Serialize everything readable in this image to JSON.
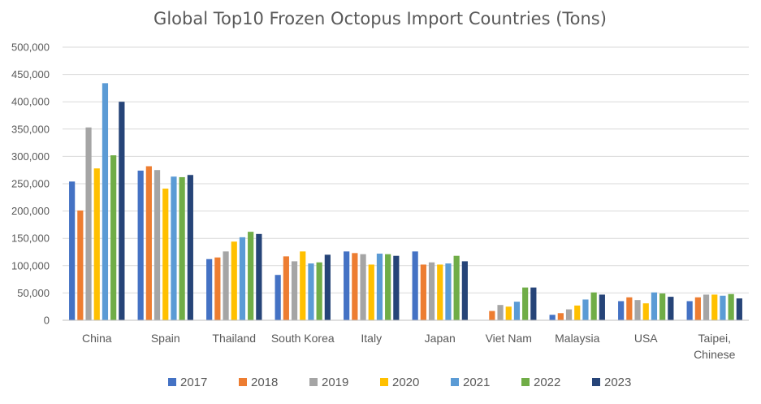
{
  "chart_data": {
    "type": "bar",
    "title": "Global Top10 Frozen Octopus Import Countries (Tons)",
    "xlabel": "",
    "ylabel": "",
    "ylim": [
      0,
      500000
    ],
    "yticks": [
      0,
      50000,
      100000,
      150000,
      200000,
      250000,
      300000,
      350000,
      400000,
      450000,
      500000
    ],
    "ytick_labels": [
      "0",
      "50,000",
      "100,000",
      "150,000",
      "200,000",
      "250,000",
      "300,000",
      "350,000",
      "400,000",
      "450,000",
      "500,000"
    ],
    "grid": true,
    "legend_position": "bottom",
    "categories": [
      "China",
      "Spain",
      "Thailand",
      "South Korea",
      "Italy",
      "Japan",
      "Viet Nam",
      "Malaysia",
      "USA",
      "Taipei, Chinese"
    ],
    "series": [
      {
        "name": "2017",
        "color": "#4472c4",
        "values": [
          254000,
          274000,
          112000,
          83000,
          126000,
          126000,
          0,
          10000,
          35000,
          35000
        ]
      },
      {
        "name": "2018",
        "color": "#ed7d31",
        "values": [
          201000,
          282000,
          115000,
          117000,
          123000,
          102000,
          17000,
          13000,
          42000,
          42000
        ]
      },
      {
        "name": "2019",
        "color": "#a5a5a5",
        "values": [
          353000,
          275000,
          126000,
          108000,
          121000,
          106000,
          28000,
          20000,
          37000,
          47000
        ]
      },
      {
        "name": "2020",
        "color": "#ffc000",
        "values": [
          278000,
          241000,
          144000,
          126000,
          102000,
          102000,
          25000,
          27000,
          31000,
          47000
        ]
      },
      {
        "name": "2021",
        "color": "#5b9bd5",
        "values": [
          434000,
          263000,
          152000,
          104000,
          122000,
          104000,
          34000,
          38000,
          51000,
          45000
        ]
      },
      {
        "name": "2022",
        "color": "#70ad47",
        "values": [
          302000,
          262000,
          162000,
          106000,
          121000,
          118000,
          60000,
          51000,
          49000,
          48000
        ]
      },
      {
        "name": "2023",
        "color": "#264478",
        "values": [
          400000,
          266000,
          158000,
          120000,
          118000,
          108000,
          60000,
          47000,
          43000,
          40000
        ]
      }
    ]
  }
}
